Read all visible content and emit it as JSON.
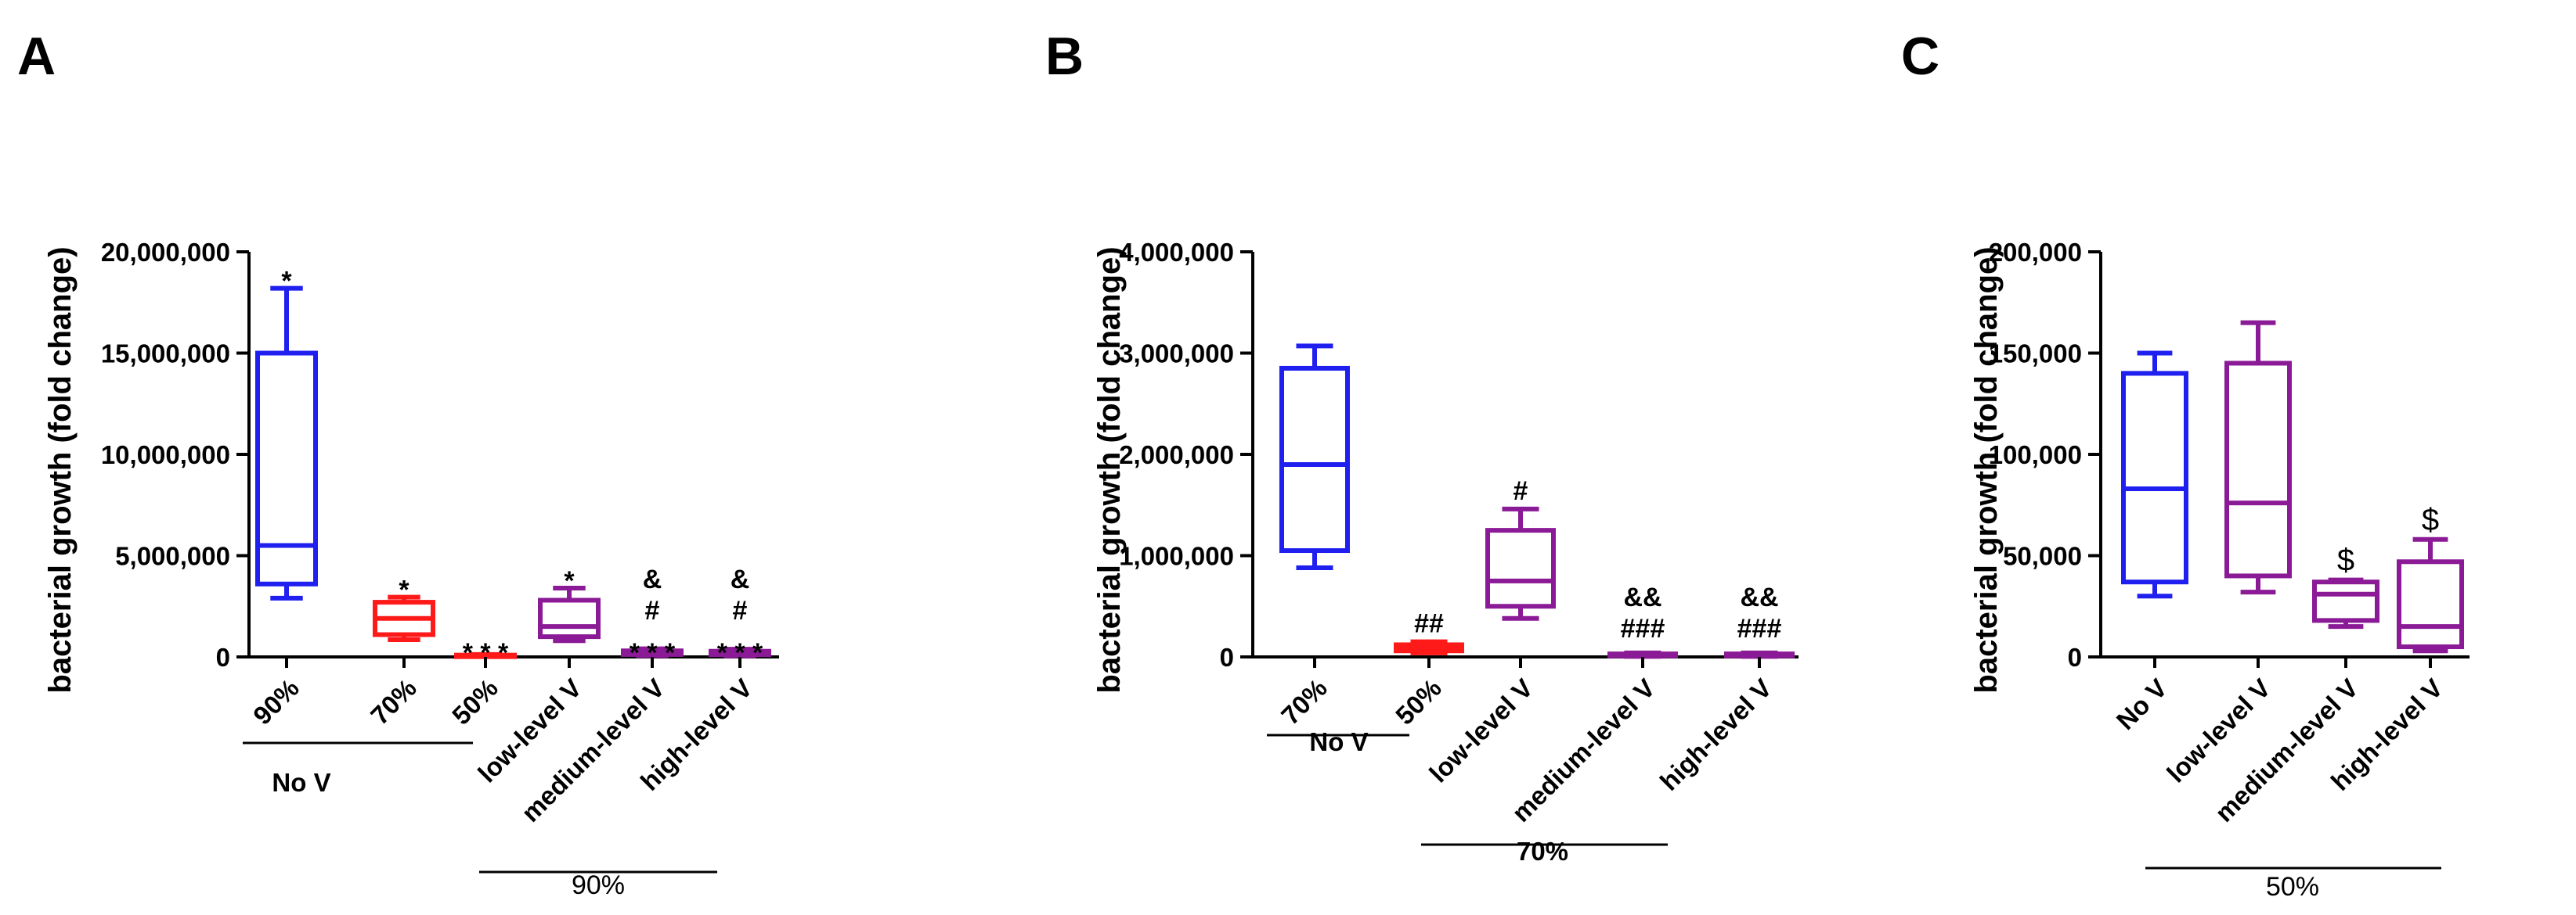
{
  "chart_data": [
    {
      "type": "box",
      "panel": "A",
      "ylabel": "bacterial growth (fold change)",
      "ylim": [
        0,
        20000000
      ],
      "yticks": [
        0,
        5000000,
        10000000,
        15000000,
        20000000
      ],
      "ytick_labels": [
        "0",
        "5,000,000",
        "10,000,000",
        "15,000,000",
        "20,000,000"
      ],
      "categories": [
        "90%",
        "70%",
        "50%",
        "low-level V",
        "medium-level V",
        "high-level V"
      ],
      "boxes": [
        {
          "min": 2900000,
          "q1": 3600000,
          "median": 5500000,
          "q3": 15000000,
          "max": 18200000,
          "color": "#1f1ff0"
        },
        {
          "min": 850000,
          "q1": 1100000,
          "median": 1900000,
          "q3": 2700000,
          "max": 2950000,
          "color": "#ff1a1a"
        },
        {
          "min": 20000,
          "q1": 40000,
          "median": 60000,
          "q3": 90000,
          "max": 120000,
          "color": "#ff1a1a"
        },
        {
          "min": 800000,
          "q1": 1000000,
          "median": 1500000,
          "q3": 2800000,
          "max": 3400000,
          "color": "#8b1a96"
        },
        {
          "min": 60000,
          "q1": 120000,
          "median": 200000,
          "q3": 300000,
          "max": 400000,
          "color": "#8b1a96"
        },
        {
          "min": 50000,
          "q1": 110000,
          "median": 180000,
          "q3": 280000,
          "max": 380000,
          "color": "#8b1a96"
        }
      ],
      "annotations": [
        [
          "*"
        ],
        [
          "*"
        ],
        [
          "* * *"
        ],
        [
          "*"
        ],
        [
          "&",
          "#",
          "* * *"
        ],
        [
          "&",
          "#",
          "* * *"
        ]
      ],
      "groups": [
        {
          "label": "No V",
          "from": 0,
          "to": 2,
          "style": "bold"
        },
        {
          "label": "90%",
          "from": 3,
          "to": 5,
          "style": "normal"
        }
      ]
    },
    {
      "type": "box",
      "panel": "B",
      "ylabel": "bacterial growth (fold change)",
      "ylim": [
        0,
        4000000
      ],
      "yticks": [
        0,
        1000000,
        2000000,
        3000000,
        4000000
      ],
      "ytick_labels": [
        "0",
        "1,000,000",
        "2,000,000",
        "3,000,000",
        "4,000,000"
      ],
      "categories": [
        "70%",
        "50%",
        "low-level V",
        "medium-level V",
        "high-level V"
      ],
      "boxes": [
        {
          "min": 880000,
          "q1": 1050000,
          "median": 1900000,
          "q3": 2850000,
          "max": 3070000,
          "color": "#1f1ff0"
        },
        {
          "min": 40000,
          "q1": 60000,
          "median": 90000,
          "q3": 120000,
          "max": 150000,
          "color": "#ff1a1a"
        },
        {
          "min": 380000,
          "q1": 500000,
          "median": 750000,
          "q3": 1250000,
          "max": 1460000,
          "color": "#8b1a96"
        },
        {
          "min": 5000,
          "q1": 10000,
          "median": 20000,
          "q3": 30000,
          "max": 40000,
          "color": "#8b1a96"
        },
        {
          "min": 5000,
          "q1": 10000,
          "median": 20000,
          "q3": 30000,
          "max": 40000,
          "color": "#8b1a96"
        }
      ],
      "annotations": [
        [],
        [
          "##"
        ],
        [
          "#"
        ],
        [
          "&&",
          "###"
        ],
        [
          "&&",
          "###"
        ]
      ],
      "groups": [
        {
          "label": "No V",
          "from": 0,
          "to": 1,
          "style": "bold"
        },
        {
          "label": "70%",
          "from": 2,
          "to": 4,
          "style": "bold"
        }
      ]
    },
    {
      "type": "box",
      "panel": "C",
      "ylabel": "bacterial growth (fold change)",
      "ylim": [
        0,
        200000
      ],
      "yticks": [
        0,
        50000,
        100000,
        150000,
        200000
      ],
      "ytick_labels": [
        "0",
        "50,000",
        "100,000",
        "150,000",
        "200,000"
      ],
      "categories": [
        "No V",
        "low-level V",
        "medium-level V",
        "high-level V"
      ],
      "boxes": [
        {
          "min": 30000,
          "q1": 37000,
          "median": 83000,
          "q3": 140000,
          "max": 150000,
          "color": "#1f1ff0"
        },
        {
          "min": 32000,
          "q1": 40000,
          "median": 76000,
          "q3": 145000,
          "max": 165000,
          "color": "#8b1a96"
        },
        {
          "min": 15000,
          "q1": 18000,
          "median": 31000,
          "q3": 37000,
          "max": 38000,
          "color": "#8b1a96"
        },
        {
          "min": 3000,
          "q1": 5000,
          "median": 15000,
          "q3": 47000,
          "max": 58000,
          "color": "#8b1a96"
        }
      ],
      "annotations": [
        [],
        [],
        [
          "$"
        ],
        [
          "$"
        ]
      ],
      "groups": [
        {
          "label": "50%",
          "from": 0,
          "to": 3,
          "style": "normal"
        }
      ]
    }
  ]
}
